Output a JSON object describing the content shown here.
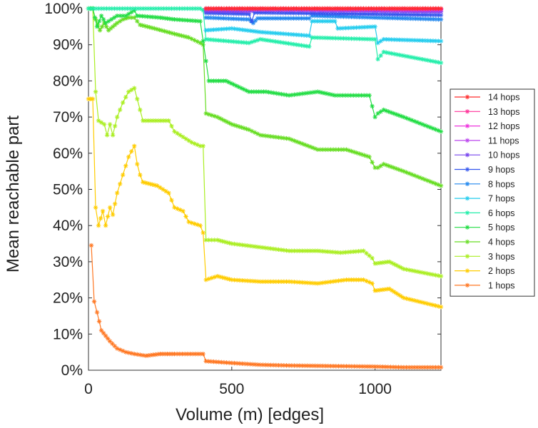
{
  "chart_data": {
    "type": "line",
    "xlabel": "Volume (m) [edges]",
    "ylabel": "Mean reachable part",
    "xlim": [
      0,
      1230
    ],
    "ylim": [
      0,
      100
    ],
    "xticks": [
      0,
      500,
      1000
    ],
    "yticks": [
      0,
      10,
      20,
      30,
      40,
      50,
      60,
      70,
      80,
      90,
      100
    ],
    "ytick_labels": [
      "0%",
      "10%",
      "20%",
      "30%",
      "40%",
      "50%",
      "60%",
      "70%",
      "80%",
      "90%",
      "100%"
    ],
    "legend_position": "right",
    "series": [
      {
        "name": "14 hops",
        "color": "#ff2a2a",
        "points": [
          [
            410,
            100
          ],
          [
            1230,
            100
          ]
        ]
      },
      {
        "name": "13 hops",
        "color": "#ff3399",
        "points": [
          [
            410,
            100
          ],
          [
            1230,
            100
          ]
        ]
      },
      {
        "name": "12 hops",
        "color": "#ee33dd",
        "points": [
          [
            410,
            100
          ],
          [
            1230,
            99.8
          ]
        ]
      },
      {
        "name": "11 hops",
        "color": "#bb44ee",
        "points": [
          [
            410,
            99.8
          ],
          [
            1230,
            99.6
          ]
        ]
      },
      {
        "name": "10 hops",
        "color": "#7744ee",
        "points": [
          [
            410,
            99.3
          ],
          [
            560,
            99.2
          ],
          [
            580,
            99.6
          ],
          [
            1230,
            99.1
          ]
        ]
      },
      {
        "name": "9 hops",
        "color": "#3355ee",
        "points": [
          [
            410,
            98.8
          ],
          [
            560,
            98.5
          ],
          [
            570,
            96.5
          ],
          [
            580,
            98.9
          ],
          [
            1230,
            98.2
          ]
        ]
      },
      {
        "name": "8 hops",
        "color": "#2288ee",
        "points": [
          [
            410,
            97.5
          ],
          [
            560,
            97
          ],
          [
            575,
            96
          ],
          [
            590,
            97.3
          ],
          [
            770,
            97.3
          ],
          [
            780,
            98
          ],
          [
            1000,
            97.5
          ],
          [
            1230,
            97
          ]
        ]
      },
      {
        "name": "7 hops",
        "color": "#22ccee",
        "points": [
          [
            410,
            94
          ],
          [
            500,
            94.5
          ],
          [
            600,
            93.5
          ],
          [
            770,
            92.5
          ],
          [
            780,
            96.5
          ],
          [
            860,
            96.5
          ],
          [
            870,
            94.5
          ],
          [
            1000,
            95
          ],
          [
            1010,
            90.5
          ],
          [
            1030,
            91.5
          ],
          [
            1230,
            91
          ]
        ]
      },
      {
        "name": "6 hops",
        "color": "#22eeaa",
        "points": [
          [
            0,
            100
          ],
          [
            390,
            100
          ],
          [
            400,
            99.5
          ],
          [
            410,
            91.5
          ],
          [
            560,
            90.5
          ],
          [
            600,
            91.5
          ],
          [
            770,
            89.5
          ],
          [
            780,
            92
          ],
          [
            1000,
            91.5
          ],
          [
            1010,
            86
          ],
          [
            1030,
            88
          ],
          [
            1230,
            85
          ]
        ]
      },
      {
        "name": "5 hops",
        "color": "#22dd44",
        "points": [
          [
            0,
            100
          ],
          [
            15,
            100
          ],
          [
            30,
            95
          ],
          [
            45,
            98
          ],
          [
            60,
            96
          ],
          [
            80,
            97
          ],
          [
            100,
            98
          ],
          [
            130,
            98
          ],
          [
            160,
            99.5
          ],
          [
            170,
            98
          ],
          [
            250,
            97.5
          ],
          [
            300,
            97
          ],
          [
            390,
            96.5
          ],
          [
            400,
            91
          ],
          [
            420,
            80
          ],
          [
            480,
            80
          ],
          [
            560,
            77
          ],
          [
            620,
            77
          ],
          [
            700,
            76
          ],
          [
            800,
            77
          ],
          [
            860,
            76
          ],
          [
            980,
            76
          ],
          [
            1000,
            70
          ],
          [
            1010,
            71
          ],
          [
            1030,
            72
          ],
          [
            1100,
            70
          ],
          [
            1230,
            66
          ]
        ]
      },
      {
        "name": "4 hops",
        "color": "#66dd22",
        "points": [
          [
            0,
            100
          ],
          [
            15,
            100
          ],
          [
            25,
            97
          ],
          [
            40,
            94
          ],
          [
            55,
            96
          ],
          [
            70,
            94
          ],
          [
            85,
            95
          ],
          [
            100,
            96
          ],
          [
            120,
            97
          ],
          [
            140,
            97.5
          ],
          [
            160,
            97.5
          ],
          [
            180,
            95.5
          ],
          [
            230,
            94.5
          ],
          [
            300,
            93
          ],
          [
            350,
            92
          ],
          [
            390,
            90.5
          ],
          [
            400,
            90
          ],
          [
            410,
            71
          ],
          [
            450,
            70
          ],
          [
            500,
            68
          ],
          [
            560,
            66.5
          ],
          [
            600,
            65
          ],
          [
            700,
            64
          ],
          [
            800,
            61
          ],
          [
            900,
            61
          ],
          [
            980,
            59
          ],
          [
            1000,
            56
          ],
          [
            1010,
            56
          ],
          [
            1030,
            57
          ],
          [
            1100,
            55
          ],
          [
            1230,
            51
          ]
        ]
      },
      {
        "name": "3 hops",
        "color": "#aaee22",
        "points": [
          [
            0,
            100
          ],
          [
            15,
            100
          ],
          [
            25,
            77
          ],
          [
            35,
            69
          ],
          [
            55,
            68
          ],
          [
            65,
            65
          ],
          [
            75,
            68
          ],
          [
            85,
            65
          ],
          [
            100,
            70
          ],
          [
            120,
            74
          ],
          [
            140,
            77
          ],
          [
            160,
            78
          ],
          [
            170,
            75
          ],
          [
            180,
            72
          ],
          [
            190,
            69
          ],
          [
            280,
            69
          ],
          [
            300,
            66
          ],
          [
            340,
            64
          ],
          [
            360,
            63
          ],
          [
            390,
            62
          ],
          [
            400,
            62
          ],
          [
            410,
            36
          ],
          [
            450,
            36
          ],
          [
            500,
            35
          ],
          [
            600,
            34
          ],
          [
            700,
            33
          ],
          [
            800,
            33
          ],
          [
            880,
            32.5
          ],
          [
            960,
            33
          ],
          [
            990,
            31
          ],
          [
            1000,
            29.5
          ],
          [
            1050,
            30
          ],
          [
            1100,
            28
          ],
          [
            1230,
            26
          ]
        ]
      },
      {
        "name": "2 hops",
        "color": "#ffcc00",
        "points": [
          [
            0,
            75
          ],
          [
            15,
            75
          ],
          [
            25,
            45
          ],
          [
            35,
            40
          ],
          [
            50,
            44
          ],
          [
            60,
            40
          ],
          [
            75,
            45
          ],
          [
            85,
            43
          ],
          [
            100,
            49
          ],
          [
            120,
            54
          ],
          [
            140,
            59
          ],
          [
            160,
            62
          ],
          [
            170,
            57
          ],
          [
            180,
            54
          ],
          [
            190,
            52
          ],
          [
            240,
            51
          ],
          [
            280,
            49
          ],
          [
            300,
            45
          ],
          [
            330,
            44
          ],
          [
            350,
            41
          ],
          [
            390,
            40
          ],
          [
            400,
            38
          ],
          [
            410,
            25
          ],
          [
            450,
            26
          ],
          [
            500,
            25
          ],
          [
            600,
            24.5
          ],
          [
            700,
            24.5
          ],
          [
            800,
            24
          ],
          [
            900,
            25
          ],
          [
            960,
            25
          ],
          [
            990,
            24
          ],
          [
            1000,
            22
          ],
          [
            1050,
            22.5
          ],
          [
            1100,
            20
          ],
          [
            1230,
            17.5
          ]
        ]
      },
      {
        "name": "1 hops",
        "color": "#ff7722",
        "points": [
          [
            10,
            34.5
          ],
          [
            20,
            19
          ],
          [
            30,
            16
          ],
          [
            45,
            11
          ],
          [
            60,
            9.5
          ],
          [
            75,
            8
          ],
          [
            100,
            6
          ],
          [
            130,
            5
          ],
          [
            160,
            4.5
          ],
          [
            200,
            4
          ],
          [
            250,
            4.5
          ],
          [
            300,
            4.5
          ],
          [
            400,
            4.5
          ],
          [
            410,
            2.5
          ],
          [
            500,
            2
          ],
          [
            600,
            1.5
          ],
          [
            700,
            1.3
          ],
          [
            800,
            1.2
          ],
          [
            900,
            1.1
          ],
          [
            1000,
            1
          ],
          [
            1100,
            0.8
          ],
          [
            1230,
            0.8
          ]
        ]
      }
    ]
  }
}
